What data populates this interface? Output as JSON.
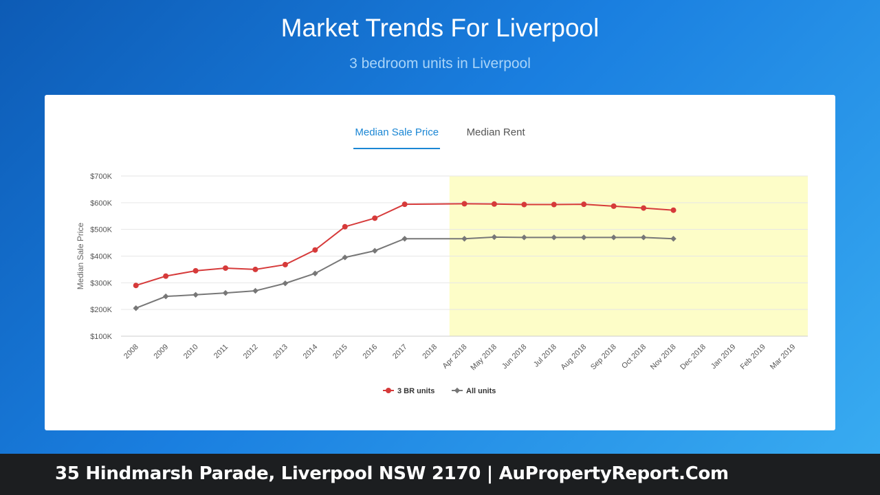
{
  "header": {
    "title": "Market Trends For Liverpool",
    "subtitle": "3 bedroom units in Liverpool"
  },
  "tabs": [
    {
      "label": "Median Sale Price",
      "active": true
    },
    {
      "label": "Median Rent",
      "active": false
    }
  ],
  "footer": {
    "text": "35 Hindmarsh Parade, Liverpool NSW 2170 | AuPropertyReport.Com"
  },
  "colors": {
    "series_3br": "#d63a3a",
    "series_all": "#777777",
    "forecast_band": "#fdfdc8",
    "tab_active": "#1a86d4"
  },
  "chart_data": {
    "type": "line",
    "ylabel": "Median Sale Price",
    "xlabel": "",
    "ylim": [
      100000,
      700000
    ],
    "yticks": [
      {
        "value": 100000,
        "label": "$100K"
      },
      {
        "value": 200000,
        "label": "$200K"
      },
      {
        "value": 300000,
        "label": "$300K"
      },
      {
        "value": 400000,
        "label": "$400K"
      },
      {
        "value": 500000,
        "label": "$500K"
      },
      {
        "value": 600000,
        "label": "$600K"
      },
      {
        "value": 700000,
        "label": "$700K"
      }
    ],
    "categories": [
      "2008",
      "2009",
      "2010",
      "2011",
      "2012",
      "2013",
      "2014",
      "2015",
      "2016",
      "2017",
      "2018",
      "Apr 2018",
      "May 2018",
      "Jun 2018",
      "Jul 2018",
      "Aug 2018",
      "Sep 2018",
      "Oct 2018",
      "Nov 2018",
      "Dec 2018",
      "Jan 2019",
      "Feb 2019",
      "Mar 2019"
    ],
    "highlight_range": {
      "from": "Apr 2018",
      "to": "Mar 2019"
    },
    "grid": true,
    "legend_position": "bottom-center",
    "series": [
      {
        "name": "3 BR units",
        "marker": "circle",
        "values": [
          290000,
          325000,
          345000,
          355000,
          350000,
          368000,
          423000,
          510000,
          542000,
          594000,
          null,
          596000,
          595000,
          593000,
          593000,
          594000,
          587000,
          580000,
          572000,
          null,
          null,
          null,
          null
        ]
      },
      {
        "name": "All units",
        "marker": "diamond",
        "values": [
          205000,
          249000,
          255000,
          262000,
          270000,
          298000,
          335000,
          395000,
          420000,
          465000,
          null,
          465000,
          471000,
          470000,
          470000,
          470000,
          470000,
          470000,
          465000,
          null,
          null,
          null,
          null
        ]
      }
    ]
  }
}
